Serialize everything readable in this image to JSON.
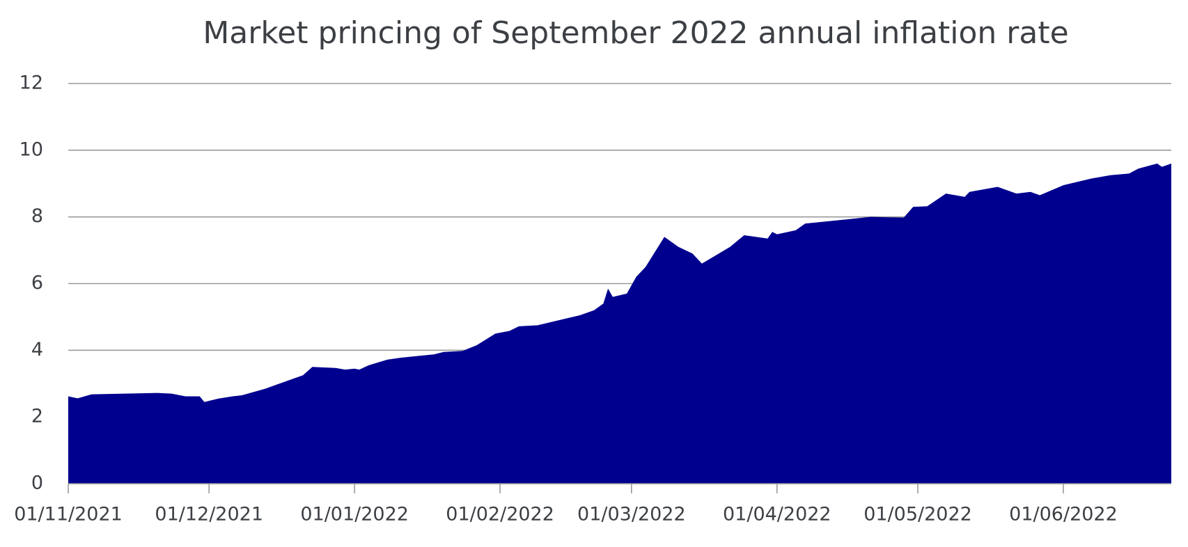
{
  "chart_data": {
    "type": "area",
    "title": "Market princing of September 2022 annual inflation rate",
    "color": "#00008f",
    "grid": true,
    "x": [
      "01/11/2021",
      "03/11/2021",
      "06/11/2021",
      "13/11/2021",
      "20/11/2021",
      "23/11/2021",
      "26/11/2021",
      "29/11/2021",
      "30/11/2021",
      "03/12/2021",
      "06/12/2021",
      "08/12/2021",
      "13/12/2021",
      "15/12/2021",
      "19/12/2021",
      "21/12/2021",
      "23/12/2021",
      "28/12/2021",
      "30/12/2021",
      "01/01/2022",
      "02/01/2022",
      "04/01/2022",
      "08/01/2022",
      "11/01/2022",
      "18/01/2022",
      "20/01/2022",
      "24/01/2022",
      "27/01/2022",
      "31/01/2022",
      "03/02/2022",
      "05/02/2022",
      "09/02/2022",
      "15/02/2022",
      "18/02/2022",
      "21/02/2022",
      "23/02/2022",
      "24/02/2022",
      "25/02/2022",
      "28/02/2022",
      "02/03/2022",
      "04/03/2022",
      "08/03/2022",
      "11/03/2022",
      "14/03/2022",
      "16/03/2022",
      "22/03/2022",
      "25/03/2022",
      "30/03/2022",
      "31/03/2022",
      "01/04/2022",
      "05/04/2022",
      "07/04/2022",
      "14/04/2022",
      "21/04/2022",
      "28/04/2022",
      "30/04/2022",
      "03/05/2022",
      "07/05/2022",
      "11/05/2022",
      "12/05/2022",
      "18/05/2022",
      "22/05/2022",
      "25/05/2022",
      "27/05/2022",
      "01/06/2022",
      "07/06/2022",
      "11/06/2022",
      "15/06/2022",
      "17/06/2022",
      "21/06/2022",
      "22/06/2022",
      "24/06/2022"
    ],
    "values": [
      2.62,
      2.56,
      2.68,
      2.7,
      2.72,
      2.7,
      2.62,
      2.62,
      2.45,
      2.55,
      2.62,
      2.65,
      2.85,
      2.95,
      3.15,
      3.25,
      3.5,
      3.47,
      3.42,
      3.45,
      3.42,
      3.55,
      3.72,
      3.78,
      3.88,
      3.95,
      3.98,
      4.15,
      4.5,
      4.58,
      4.72,
      4.75,
      4.95,
      5.05,
      5.2,
      5.4,
      5.85,
      5.6,
      5.7,
      6.2,
      6.5,
      7.4,
      7.1,
      6.9,
      6.6,
      7.1,
      7.45,
      7.35,
      7.55,
      7.48,
      7.6,
      7.8,
      7.9,
      8.0,
      7.98,
      8.3,
      8.32,
      8.7,
      8.6,
      8.75,
      8.9,
      8.7,
      8.75,
      8.65,
      8.95,
      9.15,
      9.25,
      9.3,
      9.45,
      9.6,
      9.5,
      9.6
    ],
    "xlim": [
      "01/11/2021",
      "24/06/2022"
    ],
    "xticks": [
      "01/11/2021",
      "01/12/2021",
      "01/01/2022",
      "01/02/2022",
      "01/03/2022",
      "01/04/2022",
      "01/05/2022",
      "01/06/2022"
    ],
    "ylim": [
      0,
      12
    ],
    "yticks": [
      0,
      2,
      4,
      6,
      8,
      10,
      12
    ]
  }
}
